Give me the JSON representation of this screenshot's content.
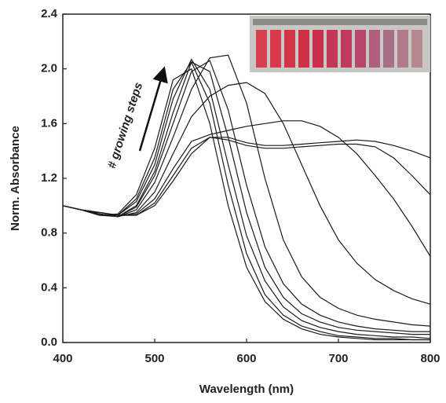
{
  "chart_data": {
    "type": "line",
    "x_label": "Wavelength (nm)",
    "y_label": "Norm. Absorbance",
    "annotation": "# growing steps",
    "color": "#1a1a1a",
    "x": [
      400,
      420,
      440,
      460,
      480,
      500,
      520,
      540,
      560,
      580,
      600,
      620,
      640,
      660,
      680,
      700,
      720,
      740,
      760,
      780,
      800
    ],
    "series": [
      {
        "values": [
          1.0,
          0.97,
          0.93,
          0.94,
          1.08,
          1.42,
          1.92,
          2.0,
          1.6,
          1.0,
          0.55,
          0.3,
          0.17,
          0.1,
          0.06,
          0.04,
          0.03,
          0.02,
          0.02,
          0.02,
          0.02
        ]
      },
      {
        "values": [
          1.0,
          0.97,
          0.93,
          0.93,
          1.05,
          1.35,
          1.85,
          2.05,
          1.75,
          1.15,
          0.65,
          0.35,
          0.2,
          0.12,
          0.08,
          0.05,
          0.04,
          0.03,
          0.03,
          0.02,
          0.02
        ]
      },
      {
        "values": [
          1.0,
          0.97,
          0.93,
          0.93,
          1.03,
          1.3,
          1.78,
          2.07,
          1.85,
          1.3,
          0.78,
          0.45,
          0.26,
          0.16,
          0.11,
          0.08,
          0.06,
          0.05,
          0.04,
          0.04,
          0.03
        ]
      },
      {
        "values": [
          1.0,
          0.97,
          0.93,
          0.92,
          1.0,
          1.25,
          1.68,
          2.05,
          1.98,
          1.5,
          0.95,
          0.55,
          0.33,
          0.21,
          0.15,
          0.11,
          0.09,
          0.08,
          0.07,
          0.06,
          0.06
        ]
      },
      {
        "values": [
          1.0,
          0.97,
          0.94,
          0.92,
          0.99,
          1.22,
          1.6,
          1.98,
          2.06,
          1.7,
          1.15,
          0.7,
          0.43,
          0.28,
          0.2,
          0.15,
          0.12,
          0.1,
          0.09,
          0.08,
          0.08
        ]
      },
      {
        "values": [
          1.0,
          0.97,
          0.94,
          0.92,
          0.97,
          1.17,
          1.5,
          1.85,
          2.08,
          2.1,
          1.75,
          1.2,
          0.75,
          0.48,
          0.33,
          0.25,
          0.2,
          0.17,
          0.15,
          0.13,
          0.12
        ]
      },
      {
        "values": [
          1.0,
          0.97,
          0.94,
          0.92,
          0.95,
          1.1,
          1.38,
          1.65,
          1.8,
          1.88,
          1.9,
          1.82,
          1.6,
          1.3,
          1.0,
          0.75,
          0.58,
          0.46,
          0.38,
          0.32,
          0.28
        ]
      },
      {
        "values": [
          1.0,
          0.97,
          0.95,
          0.93,
          0.94,
          1.05,
          1.27,
          1.47,
          1.52,
          1.55,
          1.58,
          1.6,
          1.62,
          1.62,
          1.58,
          1.5,
          1.38,
          1.22,
          1.05,
          0.85,
          0.63
        ]
      },
      {
        "values": [
          1.0,
          0.97,
          0.95,
          0.93,
          0.93,
          1.02,
          1.22,
          1.42,
          1.5,
          1.48,
          1.44,
          1.42,
          1.42,
          1.43,
          1.44,
          1.45,
          1.45,
          1.43,
          1.35,
          1.22,
          1.08
        ]
      },
      {
        "values": [
          1.0,
          0.97,
          0.95,
          0.93,
          0.93,
          1.0,
          1.18,
          1.38,
          1.5,
          1.5,
          1.46,
          1.44,
          1.44,
          1.45,
          1.46,
          1.47,
          1.48,
          1.47,
          1.44,
          1.4,
          1.35
        ]
      }
    ],
    "xlim": [
      400,
      800
    ],
    "xticks": [
      400,
      500,
      600,
      700,
      800
    ],
    "ylim": [
      0,
      2.4
    ],
    "yticks": [
      {
        "value": 0,
        "label": "0.0"
      },
      0.4,
      0.8,
      1.2,
      1.6,
      {
        "value": 2,
        "label": "2.0"
      },
      2.4
    ]
  }
}
